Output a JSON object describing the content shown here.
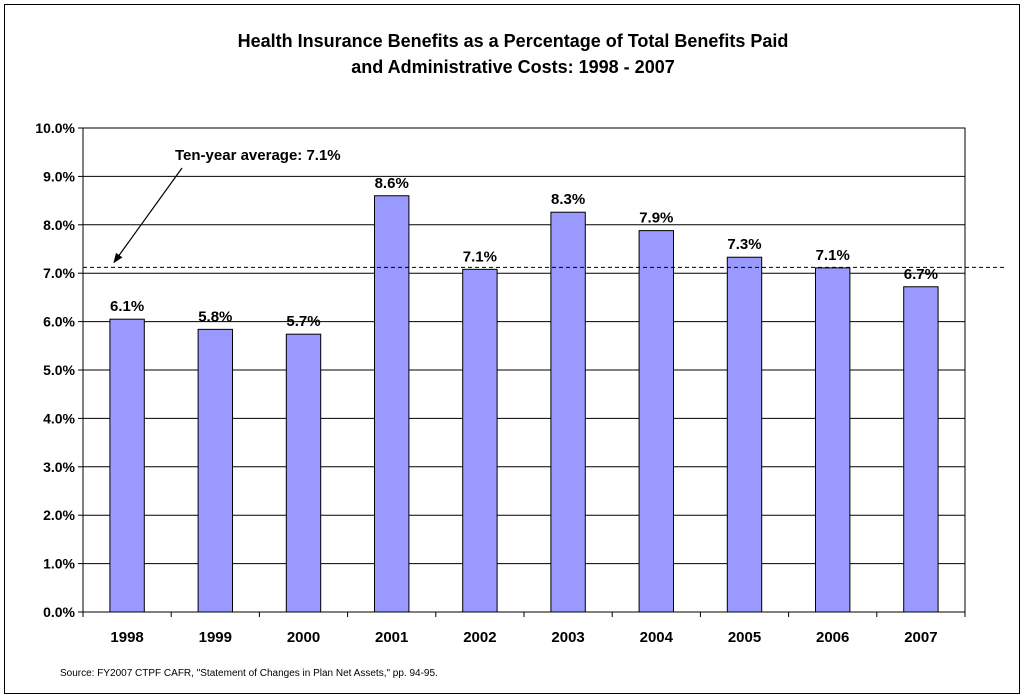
{
  "chart_data": {
    "type": "bar",
    "title": "Health Insurance Benefits as a Percentage of Total Benefits Paid",
    "subtitle": "and Administrative Costs: 1998 - 2007",
    "categories": [
      "1998",
      "1999",
      "2000",
      "2001",
      "2002",
      "2003",
      "2004",
      "2005",
      "2006",
      "2007"
    ],
    "values": [
      6.05,
      5.84,
      5.74,
      8.6,
      7.08,
      8.26,
      7.88,
      7.33,
      7.11,
      6.72
    ],
    "data_labels": [
      "6.1%",
      "5.8%",
      "5.7%",
      "8.6%",
      "7.1%",
      "8.3%",
      "7.9%",
      "7.3%",
      "7.1%",
      "6.7%"
    ],
    "ylim": [
      0,
      10
    ],
    "yticks": [
      0,
      1,
      2,
      3,
      4,
      5,
      6,
      7,
      8,
      9,
      10
    ],
    "ytick_labels": [
      "0.0%",
      "1.0%",
      "2.0%",
      "3.0%",
      "4.0%",
      "5.0%",
      "6.0%",
      "7.0%",
      "8.0%",
      "9.0%",
      "10.0%"
    ],
    "grid": true,
    "bar_color": "#9999FF",
    "average_line": {
      "value": 7.12,
      "label": "Ten-year average: 7.1%"
    }
  },
  "source": "Source: FY2007 CTPF CAFR, \"Statement of Changes in Plan Net Assets,\" pp. 94-95."
}
